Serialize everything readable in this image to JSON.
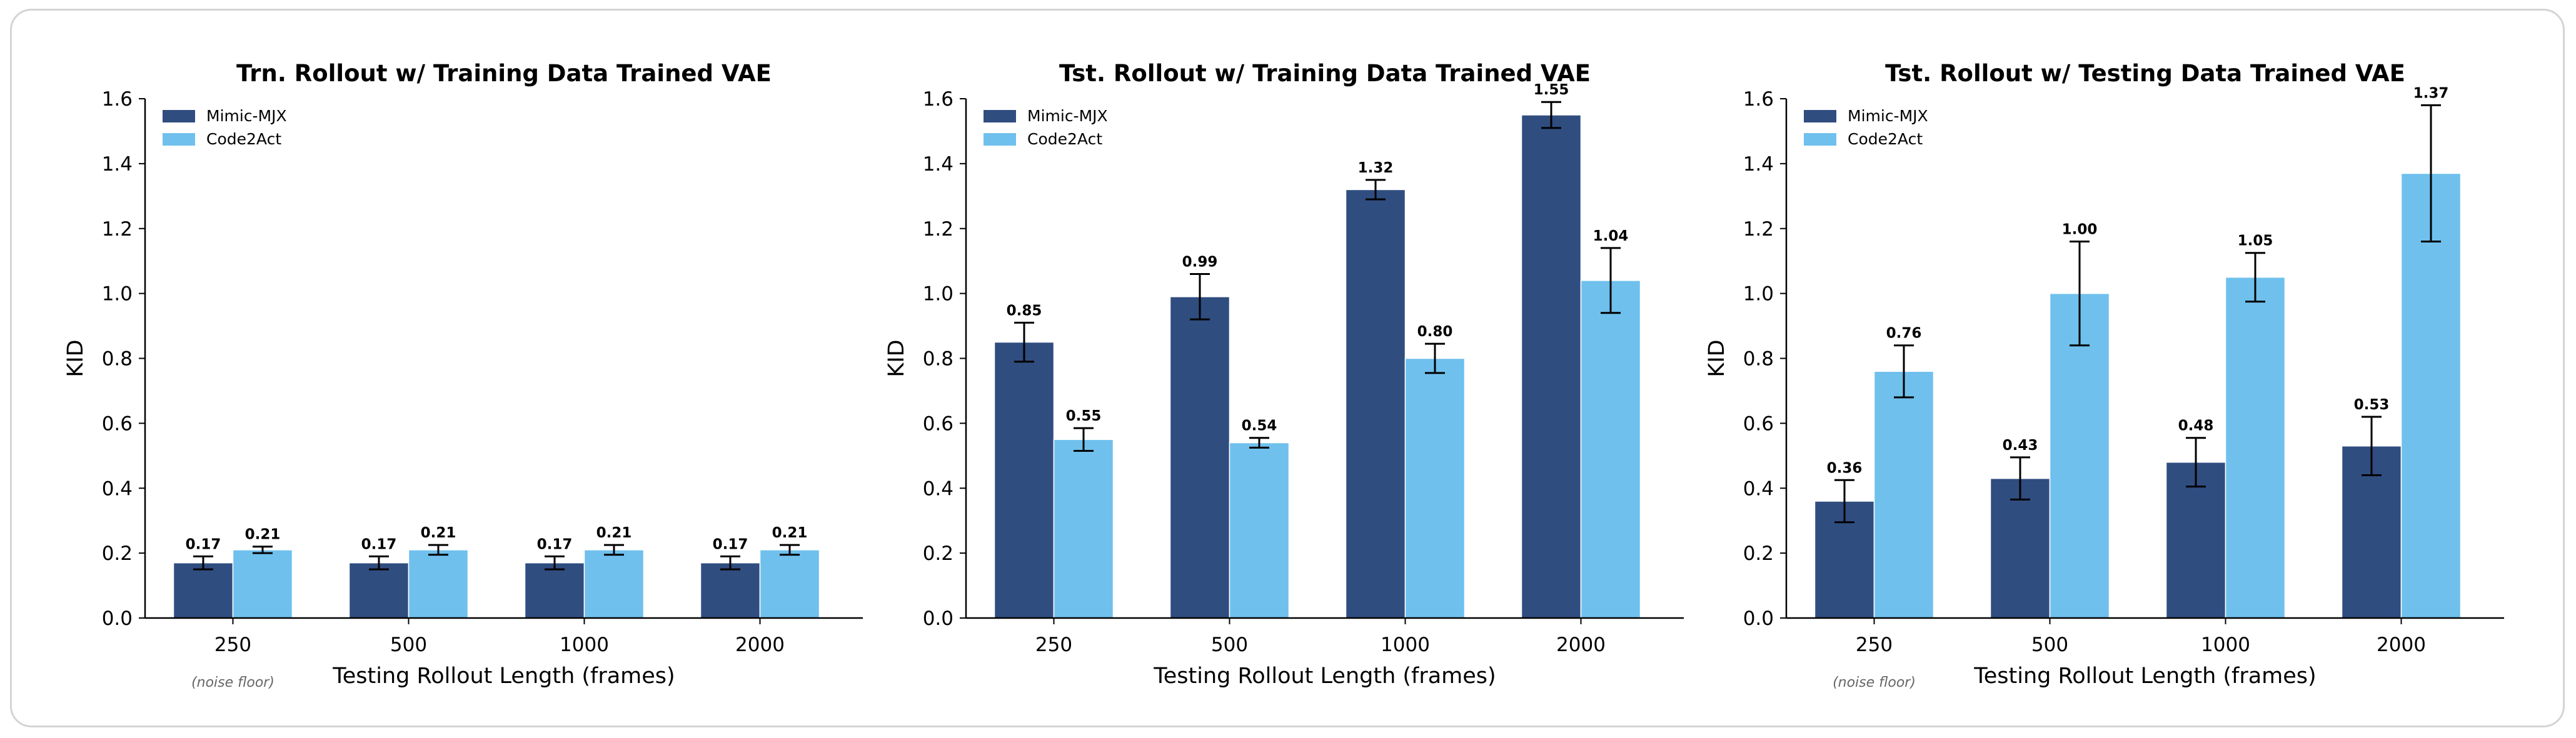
{
  "colors": {
    "series_0": "#304d80",
    "series_1": "#6fc0ed",
    "axis": "#000000",
    "note": "#666666"
  },
  "chart_data": [
    {
      "type": "bar",
      "title": "Trn. Rollout w/ Training Data Trained VAE",
      "xlabel": "Testing Rollout Length (frames)",
      "ylabel": "KID",
      "ylim": [
        0,
        1.6
      ],
      "yticks": [
        "0.0",
        "0.2",
        "0.4",
        "0.6",
        "0.8",
        "1.0",
        "1.2",
        "1.4",
        "1.6"
      ],
      "categories": [
        "250",
        "500",
        "1000",
        "2000"
      ],
      "legend_position": "top-left",
      "note": "(noise floor)",
      "series": [
        {
          "name": "Mimic-MJX",
          "values": [
            0.17,
            0.17,
            0.17,
            0.17
          ],
          "errors": [
            0.02,
            0.02,
            0.02,
            0.02
          ],
          "labels": [
            "0.17",
            "0.17",
            "0.17",
            "0.17"
          ]
        },
        {
          "name": "Code2Act",
          "values": [
            0.21,
            0.21,
            0.21,
            0.21
          ],
          "errors": [
            0.01,
            0.015,
            0.015,
            0.015
          ],
          "labels": [
            "0.21",
            "0.21",
            "0.21",
            "0.21"
          ]
        }
      ]
    },
    {
      "type": "bar",
      "title": "Tst. Rollout w/ Training Data Trained VAE",
      "xlabel": "Testing Rollout Length (frames)",
      "ylabel": "KID",
      "ylim": [
        0,
        1.6
      ],
      "yticks": [
        "0.0",
        "0.2",
        "0.4",
        "0.6",
        "0.8",
        "1.0",
        "1.2",
        "1.4",
        "1.6"
      ],
      "categories": [
        "250",
        "500",
        "1000",
        "2000"
      ],
      "legend_position": "top-left",
      "series": [
        {
          "name": "Mimic-MJX",
          "values": [
            0.85,
            0.99,
            1.32,
            1.55
          ],
          "errors": [
            0.06,
            0.07,
            0.03,
            0.04
          ],
          "labels": [
            "0.85",
            "0.99",
            "1.32",
            "1.55"
          ]
        },
        {
          "name": "Code2Act",
          "values": [
            0.55,
            0.54,
            0.8,
            1.04
          ],
          "errors": [
            0.035,
            0.015,
            0.045,
            0.1
          ],
          "labels": [
            "0.55",
            "0.54",
            "0.80",
            "1.04"
          ]
        }
      ]
    },
    {
      "type": "bar",
      "title": "Tst. Rollout w/ Testing Data Trained VAE",
      "xlabel": "Testing Rollout Length (frames)",
      "ylabel": "KID",
      "ylim": [
        0,
        1.6
      ],
      "yticks": [
        "0.0",
        "0.2",
        "0.4",
        "0.6",
        "0.8",
        "1.0",
        "1.2",
        "1.4",
        "1.6"
      ],
      "categories": [
        "250",
        "500",
        "1000",
        "2000"
      ],
      "legend_position": "top-left",
      "note": "(noise floor)",
      "series": [
        {
          "name": "Mimic-MJX",
          "values": [
            0.36,
            0.43,
            0.48,
            0.53
          ],
          "errors": [
            0.065,
            0.065,
            0.075,
            0.09
          ],
          "labels": [
            "0.36",
            "0.43",
            "0.48",
            "0.53"
          ]
        },
        {
          "name": "Code2Act",
          "values": [
            0.76,
            1.0,
            1.05,
            1.37
          ],
          "errors": [
            0.08,
            0.16,
            0.075,
            0.21
          ],
          "labels": [
            "0.76",
            "1.00",
            "1.05",
            "1.37"
          ]
        }
      ]
    }
  ]
}
